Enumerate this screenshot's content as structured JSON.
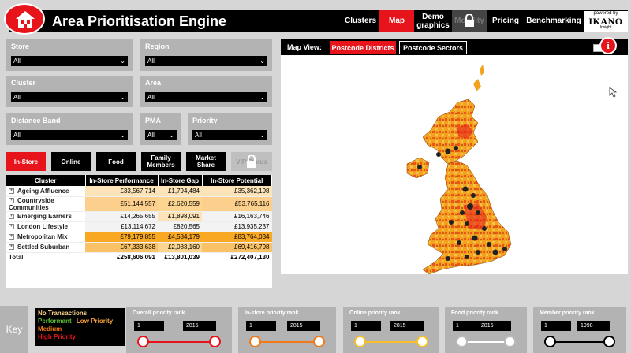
{
  "header": {
    "title": "Area Prioritisation Engine",
    "nav": [
      {
        "label": "Clusters",
        "state": "normal"
      },
      {
        "label": "Map",
        "state": "active"
      },
      {
        "label": "Demo graphics",
        "state": "normal"
      },
      {
        "label": "Mobility",
        "state": "locked"
      },
      {
        "label": "Pricing",
        "state": "normal"
      },
      {
        "label": "Benchmarking",
        "state": "normal"
      }
    ],
    "powered": {
      "line1": "powered by",
      "brand": "IKANO",
      "line3": "Insight"
    }
  },
  "filters": {
    "store": {
      "label": "Store",
      "value": "All"
    },
    "region": {
      "label": "Region",
      "value": "All"
    },
    "cluster": {
      "label": "Cluster",
      "value": "All"
    },
    "area": {
      "label": "Area",
      "value": "All"
    },
    "distance_band": {
      "label": "Distance Band",
      "value": "All"
    },
    "pma": {
      "label": "PMA",
      "value": "All"
    },
    "priority": {
      "label": "Priority",
      "value": "All"
    }
  },
  "toggles": [
    {
      "label": "In-Store",
      "state": "active"
    },
    {
      "label": "Online",
      "state": "normal"
    },
    {
      "label": "Food",
      "state": "normal"
    },
    {
      "label": "Family Members",
      "state": "normal"
    },
    {
      "label": "Market Share",
      "state": "normal"
    },
    {
      "label": "VIP Status",
      "state": "locked"
    }
  ],
  "table": {
    "headers": [
      "Cluster",
      "In-Store Performance",
      "In-Store Gap",
      "In-Store Potential"
    ],
    "rows": [
      {
        "name": "Ageing Affluence",
        "perf": "£33,567,714",
        "gap": "£1,794,484",
        "pot": "£35,362,198",
        "c1": "#fde3b8",
        "c2": "#fde3b8",
        "c3": "#fde3b8"
      },
      {
        "name": "Countryside Communities",
        "perf": "£51,144,557",
        "gap": "£2,620,559",
        "pot": "£53,765,116",
        "c1": "#fcd08c",
        "c2": "#fcd590",
        "c3": "#fcd08c"
      },
      {
        "name": "Emerging Earners",
        "perf": "£14,265,655",
        "gap": "£1,898,091",
        "pot": "£16,163,746",
        "c1": "#f3f3f3",
        "c2": "#fde3b8",
        "c3": "#f3f3f3"
      },
      {
        "name": "London Lifestyle",
        "perf": "£13,114,672",
        "gap": "£820,565",
        "pot": "£13,935,237",
        "c1": "#f3f3f3",
        "c2": "#f3f3f3",
        "c3": "#f3f3f3"
      },
      {
        "name": "Metropolitan Mix",
        "perf": "£79,179,855",
        "gap": "£4,584,179",
        "pot": "£83,764,034",
        "c1": "#f8a823",
        "c2": "#f8a823",
        "c3": "#f8a823"
      },
      {
        "name": "Settled Suburban",
        "perf": "£67,333,638",
        "gap": "£2,083,160",
        "pot": "£69,416,798",
        "c1": "#fac266",
        "c2": "#fcd590",
        "c3": "#fac266"
      }
    ],
    "total": {
      "name": "Total",
      "perf": "£258,606,091",
      "gap": "£13,801,039",
      "pot": "£272,407,130"
    }
  },
  "map": {
    "label": "Map View:",
    "tabs": [
      {
        "label": "Postcode Districts",
        "state": "active"
      },
      {
        "label": "Postcode Sectors",
        "state": "inactive"
      }
    ],
    "info_glyph": "i"
  },
  "key": {
    "label": "Key",
    "items": [
      {
        "label": "No Transactions",
        "color": "#fbd38a"
      },
      {
        "label": "Performant",
        "color": "#5fbf3a"
      },
      {
        "label": "Low Priority",
        "color": "#f6a23a"
      },
      {
        "label": "Medium",
        "color": "#f07a1a"
      },
      {
        "label": "High Priority",
        "color": "#e8141b"
      }
    ]
  },
  "ranks": [
    {
      "label": "Overall priority rank",
      "min": "1",
      "max": "2815",
      "color": "#e8141b"
    },
    {
      "label": "In-store priority rank",
      "min": "1",
      "max": "2815",
      "color": "#f07a1a"
    },
    {
      "label": "Online priority rank",
      "min": "1",
      "max": "2815",
      "color": "#f6c02a"
    },
    {
      "label": "Food priority rank",
      "min": "1",
      "max": "2815",
      "color": "#ffffff"
    },
    {
      "label": "Member priority rank",
      "min": "1",
      "max": "1998",
      "color": "#000000"
    }
  ]
}
